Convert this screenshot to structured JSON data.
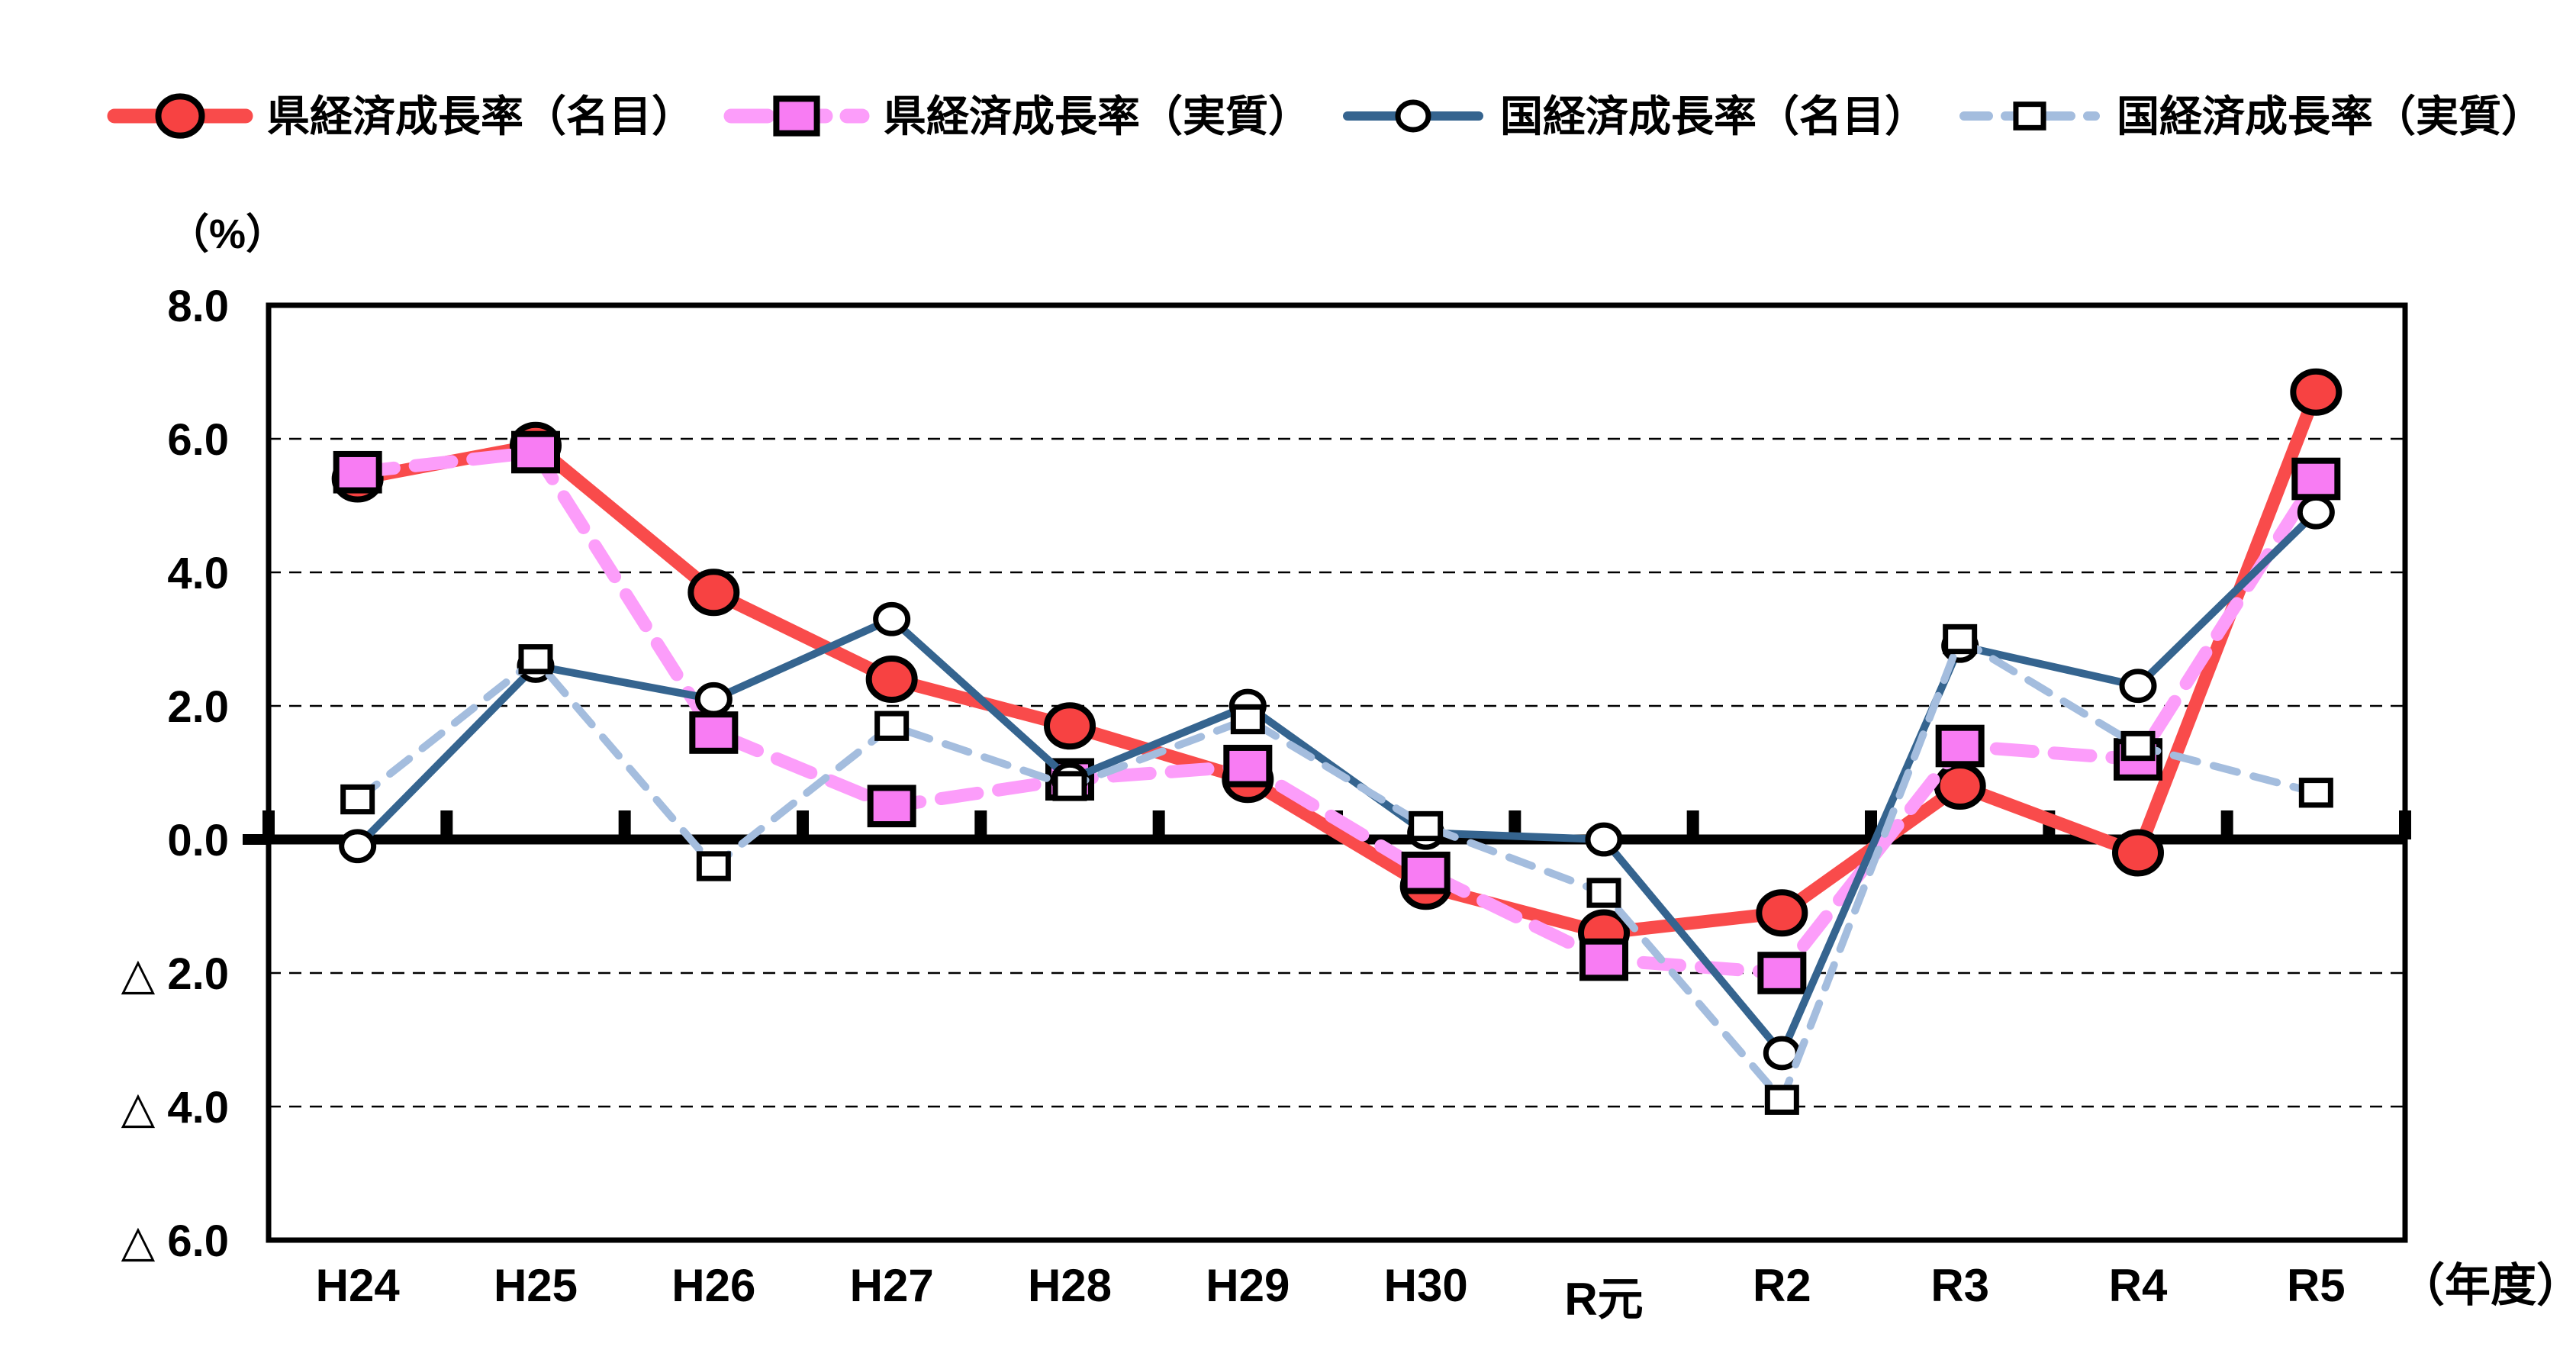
{
  "chart_data": {
    "type": "line",
    "title": "",
    "y_unit_label": "（%）",
    "x_unit_label": "（年度）",
    "categories": [
      "H24",
      "H25",
      "H26",
      "H27",
      "H28",
      "H29",
      "H30",
      "R元",
      "R2",
      "R3",
      "R4",
      "R5"
    ],
    "x_label_dy": [
      0,
      0,
      0,
      0,
      0,
      0,
      0,
      18,
      0,
      0,
      0,
      0
    ],
    "ylim": [
      -6,
      8
    ],
    "grid_on": true,
    "grid_values": [
      6,
      4,
      2,
      -2,
      -4
    ],
    "legend_position": "top",
    "yticks": [
      {
        "label": "8.0",
        "value": 8
      },
      {
        "label": "6.0",
        "value": 6
      },
      {
        "label": "4.0",
        "value": 4
      },
      {
        "label": "2.0",
        "value": 2
      },
      {
        "label": "0.0",
        "value": 0
      },
      {
        "label": "△ 2.0",
        "value": -2
      },
      {
        "label": "△ 4.0",
        "value": -4
      },
      {
        "label": "△ 6.0",
        "value": -6
      }
    ],
    "colors": {
      "axis": "#000000",
      "background": "#ffffff",
      "pref_nominal": "#F94B4B",
      "pref_real_line": "#FC9DFA",
      "pref_real_fill": "#F87CF3",
      "national_nominal": "#35648F",
      "national_real": "#A4BDDE"
    },
    "series": [
      {
        "id": "pref-nominal",
        "name": "県経済成長率（名目）",
        "line_color": "#F94B4B",
        "line_width": 17,
        "dash": "",
        "marker": "circle",
        "marker_fill": "#F74242",
        "marker_stroke": "#000000",
        "marker_stroke_width": 8,
        "marker_size": 30,
        "values": [
          5.4,
          5.9,
          3.7,
          2.4,
          1.7,
          0.9,
          -0.7,
          -1.4,
          -1.1,
          0.8,
          -0.2,
          6.7
        ]
      },
      {
        "id": "pref-real",
        "name": "県経済成長率（実質）",
        "line_color": "#FC9DFA",
        "line_width": 17,
        "dash": "48 28",
        "marker": "square",
        "marker_fill": "#F87CF3",
        "marker_stroke": "#000000",
        "marker_stroke_width": 8,
        "marker_size": 28,
        "values": [
          5.5,
          5.8,
          1.6,
          0.5,
          0.9,
          1.1,
          -0.5,
          -1.8,
          -2.0,
          1.4,
          1.2,
          5.4
        ]
      },
      {
        "id": "national-nominal",
        "name": "国経済成長率（名目）",
        "line_color": "#35648F",
        "line_width": 10,
        "dash": "",
        "marker": "circle",
        "marker_fill": "#FFFFFF",
        "marker_stroke": "#000000",
        "marker_stroke_width": 7,
        "marker_size": 21,
        "values": [
          -0.1,
          2.6,
          2.1,
          3.3,
          0.9,
          2.0,
          0.1,
          0.0,
          -3.2,
          2.9,
          2.3,
          4.9
        ]
      },
      {
        "id": "national-real",
        "name": "国経済成長率（実質）",
        "line_color": "#A4BDDE",
        "line_width": 10,
        "dash": "32 22",
        "marker": "square",
        "marker_fill": "#FFFFFF",
        "marker_stroke": "#000000",
        "marker_stroke_width": 7,
        "marker_size": 19,
        "values": [
          0.6,
          2.7,
          -0.4,
          1.7,
          0.8,
          1.8,
          0.2,
          -0.8,
          -3.9,
          3.0,
          1.4,
          0.7
        ]
      }
    ]
  }
}
